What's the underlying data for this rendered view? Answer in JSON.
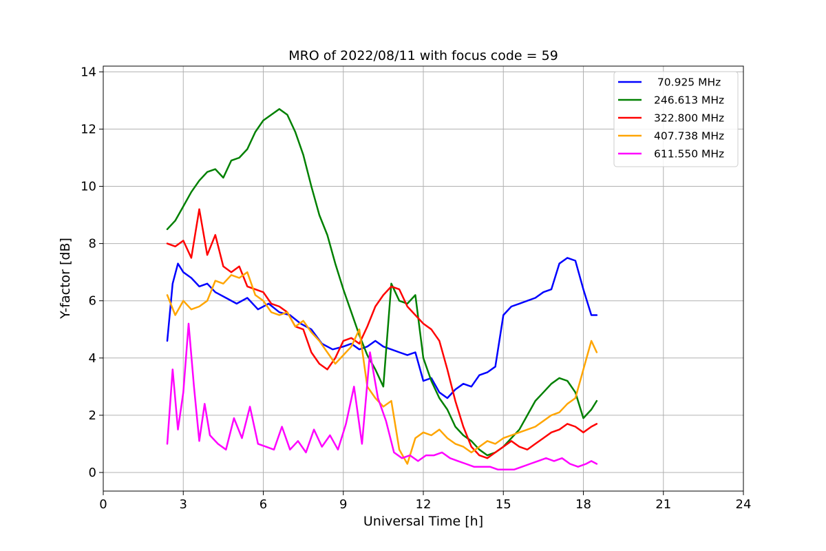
{
  "chart_data": {
    "type": "line",
    "title": "MRO of 2022/08/11 with focus code = 59",
    "xlabel": "Universal Time [h]",
    "ylabel": "Y-factor [dB]",
    "xlim": [
      0,
      24
    ],
    "ylim": [
      -0.65,
      14.2
    ],
    "xticks": [
      0,
      3,
      6,
      9,
      12,
      15,
      18,
      21,
      24
    ],
    "yticks": [
      0,
      2,
      4,
      6,
      8,
      10,
      12,
      14
    ],
    "grid": true,
    "legend_position": "top-right",
    "series": [
      {
        "name": " 70.925 MHz",
        "color": "#0000ff",
        "x": [
          2.4,
          2.6,
          2.8,
          3.0,
          3.3,
          3.6,
          3.9,
          4.2,
          4.6,
          5.0,
          5.4,
          5.8,
          6.2,
          6.6,
          7.0,
          7.4,
          7.8,
          8.2,
          8.6,
          9.0,
          9.3,
          9.6,
          9.9,
          10.2,
          10.5,
          10.8,
          11.1,
          11.4,
          11.7,
          12.0,
          12.3,
          12.6,
          12.9,
          13.2,
          13.5,
          13.8,
          14.1,
          14.4,
          14.7,
          15.0,
          15.3,
          15.6,
          15.9,
          16.2,
          16.5,
          16.8,
          17.1,
          17.4,
          17.7,
          18.0,
          18.3,
          18.5
        ],
        "y": [
          4.6,
          6.6,
          7.3,
          7.0,
          6.8,
          6.5,
          6.6,
          6.3,
          6.1,
          5.9,
          6.1,
          5.7,
          5.9,
          5.6,
          5.5,
          5.2,
          5.0,
          4.5,
          4.3,
          4.4,
          4.5,
          4.3,
          4.4,
          4.6,
          4.4,
          4.3,
          4.2,
          4.1,
          4.2,
          3.2,
          3.3,
          2.8,
          2.6,
          2.9,
          3.1,
          3.0,
          3.4,
          3.5,
          3.7,
          5.5,
          5.8,
          5.9,
          6.0,
          6.1,
          6.3,
          6.4,
          7.3,
          7.5,
          7.4,
          6.4,
          5.5,
          5.5
        ]
      },
      {
        "name": "246.613 MHz",
        "color": "#008000",
        "x": [
          2.4,
          2.7,
          3.0,
          3.3,
          3.6,
          3.9,
          4.2,
          4.5,
          4.8,
          5.1,
          5.4,
          5.7,
          6.0,
          6.3,
          6.6,
          6.9,
          7.2,
          7.5,
          7.8,
          8.1,
          8.4,
          8.7,
          9.0,
          9.3,
          9.6,
          9.9,
          10.2,
          10.5,
          10.8,
          11.1,
          11.4,
          11.7,
          12.0,
          12.3,
          12.6,
          12.9,
          13.2,
          13.5,
          13.8,
          14.1,
          14.4,
          14.7,
          15.0,
          15.3,
          15.6,
          15.9,
          16.2,
          16.5,
          16.8,
          17.1,
          17.4,
          17.7,
          18.0,
          18.3,
          18.5
        ],
        "y": [
          8.5,
          8.8,
          9.3,
          9.8,
          10.2,
          10.5,
          10.6,
          10.3,
          10.9,
          11.0,
          11.3,
          11.9,
          12.3,
          12.5,
          12.7,
          12.5,
          11.9,
          11.1,
          10.0,
          9.0,
          8.3,
          7.3,
          6.4,
          5.6,
          4.8,
          4.1,
          3.6,
          3.0,
          6.6,
          6.0,
          5.9,
          6.2,
          4.0,
          3.2,
          2.6,
          2.2,
          1.6,
          1.3,
          1.1,
          0.8,
          0.6,
          0.7,
          0.9,
          1.2,
          1.5,
          2.0,
          2.5,
          2.8,
          3.1,
          3.3,
          3.2,
          2.8,
          1.9,
          2.2,
          2.5
        ]
      },
      {
        "name": "322.800 MHz",
        "color": "#ff0000",
        "x": [
          2.4,
          2.7,
          3.0,
          3.3,
          3.6,
          3.9,
          4.2,
          4.5,
          4.8,
          5.1,
          5.4,
          5.7,
          6.0,
          6.3,
          6.6,
          6.9,
          7.2,
          7.5,
          7.8,
          8.1,
          8.4,
          8.7,
          9.0,
          9.3,
          9.6,
          9.9,
          10.2,
          10.5,
          10.8,
          11.1,
          11.4,
          11.7,
          12.0,
          12.3,
          12.6,
          12.9,
          13.2,
          13.5,
          13.8,
          14.1,
          14.4,
          14.7,
          15.0,
          15.3,
          15.6,
          15.9,
          16.2,
          16.5,
          16.8,
          17.1,
          17.4,
          17.7,
          18.0,
          18.3,
          18.5
        ],
        "y": [
          8.0,
          7.9,
          8.1,
          7.5,
          9.2,
          7.6,
          8.3,
          7.2,
          7.0,
          7.2,
          6.5,
          6.4,
          6.3,
          5.9,
          5.8,
          5.6,
          5.1,
          5.0,
          4.2,
          3.8,
          3.6,
          4.0,
          4.6,
          4.7,
          4.5,
          5.1,
          5.8,
          6.2,
          6.5,
          6.4,
          5.8,
          5.5,
          5.2,
          5.0,
          4.6,
          3.6,
          2.5,
          1.6,
          0.9,
          0.6,
          0.5,
          0.7,
          0.9,
          1.1,
          0.9,
          0.8,
          1.0,
          1.2,
          1.4,
          1.5,
          1.7,
          1.6,
          1.4,
          1.6,
          1.7
        ]
      },
      {
        "name": "407.738 MHz",
        "color": "#ffa500",
        "x": [
          2.4,
          2.7,
          3.0,
          3.3,
          3.6,
          3.9,
          4.2,
          4.5,
          4.8,
          5.1,
          5.4,
          5.7,
          6.0,
          6.3,
          6.6,
          6.9,
          7.2,
          7.5,
          7.8,
          8.1,
          8.4,
          8.7,
          9.0,
          9.3,
          9.6,
          9.9,
          10.2,
          10.5,
          10.8,
          11.1,
          11.4,
          11.7,
          12.0,
          12.3,
          12.6,
          12.9,
          13.2,
          13.5,
          13.8,
          14.1,
          14.4,
          14.7,
          15.0,
          15.3,
          15.6,
          15.9,
          16.2,
          16.5,
          16.8,
          17.1,
          17.4,
          17.7,
          18.0,
          18.3,
          18.5
        ],
        "y": [
          6.2,
          5.5,
          6.0,
          5.7,
          5.8,
          6.0,
          6.7,
          6.6,
          6.9,
          6.8,
          7.0,
          6.2,
          6.0,
          5.6,
          5.5,
          5.6,
          5.1,
          5.3,
          4.9,
          4.6,
          4.2,
          3.8,
          4.1,
          4.4,
          5.0,
          3.0,
          2.6,
          2.3,
          2.5,
          0.8,
          0.3,
          1.2,
          1.4,
          1.3,
          1.5,
          1.2,
          1.0,
          0.9,
          0.7,
          0.9,
          1.1,
          1.0,
          1.2,
          1.3,
          1.4,
          1.5,
          1.6,
          1.8,
          2.0,
          2.1,
          2.4,
          2.6,
          3.6,
          4.6,
          4.2
        ]
      },
      {
        "name": "611.550 MHz",
        "color": "#ff00ff",
        "x": [
          2.4,
          2.6,
          2.8,
          3.0,
          3.2,
          3.4,
          3.6,
          3.8,
          4.0,
          4.3,
          4.6,
          4.9,
          5.2,
          5.5,
          5.8,
          6.1,
          6.4,
          6.7,
          7.0,
          7.3,
          7.6,
          7.9,
          8.2,
          8.5,
          8.8,
          9.1,
          9.4,
          9.7,
          10.0,
          10.3,
          10.6,
          10.9,
          11.2,
          11.5,
          11.8,
          12.1,
          12.4,
          12.7,
          13.0,
          13.3,
          13.6,
          13.9,
          14.2,
          14.5,
          14.8,
          15.1,
          15.4,
          15.7,
          16.0,
          16.3,
          16.6,
          16.9,
          17.2,
          17.5,
          17.8,
          18.1,
          18.3,
          18.5
        ],
        "y": [
          1.0,
          3.6,
          1.5,
          2.8,
          5.2,
          3.0,
          1.1,
          2.4,
          1.3,
          1.0,
          0.8,
          1.9,
          1.2,
          2.3,
          1.0,
          0.9,
          0.8,
          1.6,
          0.8,
          1.1,
          0.7,
          1.5,
          0.9,
          1.3,
          0.8,
          1.7,
          3.0,
          1.0,
          4.2,
          2.6,
          1.8,
          0.7,
          0.5,
          0.6,
          0.4,
          0.6,
          0.6,
          0.7,
          0.5,
          0.4,
          0.3,
          0.2,
          0.2,
          0.2,
          0.1,
          0.1,
          0.1,
          0.2,
          0.3,
          0.4,
          0.5,
          0.4,
          0.5,
          0.3,
          0.2,
          0.3,
          0.4,
          0.3
        ]
      }
    ]
  }
}
